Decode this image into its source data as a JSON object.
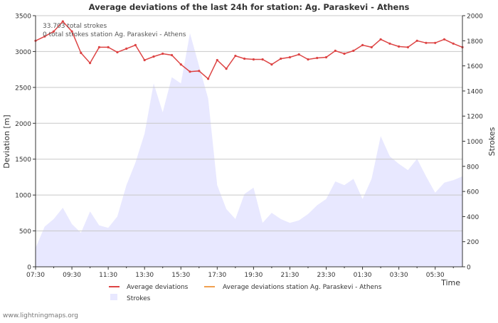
{
  "chart_data": {
    "type": "line",
    "title": "Average deviations of the last 24h for station: Ag. Paraskevi - Athens",
    "xlabel": "Time",
    "ylabel_left": "Deviation  [m]",
    "ylabel_right": "Strokes",
    "ylim_left": [
      0,
      3500
    ],
    "ylim_right": [
      0,
      2000
    ],
    "yticks_left": [
      "0",
      "500",
      "1000",
      "1500",
      "2000",
      "2500",
      "3000",
      "3500"
    ],
    "yticks_right": [
      "0",
      "200",
      "400",
      "600",
      "800",
      "1000",
      "1200",
      "1400",
      "1600",
      "1800",
      "2000"
    ],
    "x_range_hours": [
      0,
      23.5
    ],
    "xticks": [
      {
        "h": 0,
        "label": "07:30"
      },
      {
        "h": 2,
        "label": "09:30"
      },
      {
        "h": 4,
        "label": "11:30"
      },
      {
        "h": 6,
        "label": "13:30"
      },
      {
        "h": 8,
        "label": "15:30"
      },
      {
        "h": 10,
        "label": "17:30"
      },
      {
        "h": 12,
        "label": "19:30"
      },
      {
        "h": 14,
        "label": "21:30"
      },
      {
        "h": 16,
        "label": "23:30"
      },
      {
        "h": 18,
        "label": "01:30"
      },
      {
        "h": 20,
        "label": "03:30"
      },
      {
        "h": 22,
        "label": "05:30"
      }
    ],
    "annotations": [
      "33.703 total strokes",
      "0 total strokes station Ag. Paraskevi - Athens"
    ],
    "series": [
      {
        "name": "Average deviations",
        "axis": "left",
        "color": "#dd4444",
        "x": [
          0,
          0.5,
          1,
          1.5,
          2,
          2.5,
          3,
          3.5,
          4,
          4.5,
          5,
          5.5,
          6,
          6.5,
          7,
          7.5,
          8,
          8.5,
          9,
          9.5,
          10,
          10.5,
          11,
          11.5,
          12,
          12.5,
          13,
          13.5,
          14,
          14.5,
          15,
          15.5,
          16,
          16.5,
          17,
          17.5,
          18,
          18.5,
          19,
          19.5,
          20,
          20.5,
          21,
          21.5,
          22,
          22.5,
          23,
          23.5
        ],
        "values": [
          3150,
          3210,
          3280,
          3420,
          3280,
          2980,
          2840,
          3060,
          3060,
          2990,
          3040,
          3090,
          2880,
          2930,
          2970,
          2950,
          2820,
          2720,
          2730,
          2620,
          2880,
          2760,
          2940,
          2900,
          2890,
          2890,
          2820,
          2900,
          2920,
          2960,
          2890,
          2910,
          2920,
          3010,
          2970,
          3010,
          3090,
          3060,
          3170,
          3110,
          3070,
          3060,
          3150,
          3120,
          3120,
          3170,
          3110,
          3060
        ]
      },
      {
        "name": "Average deviations station Ag. Paraskevi - Athens",
        "axis": "left",
        "color": "#f0a050",
        "x": [],
        "values": []
      },
      {
        "name": "Strokes",
        "axis": "right",
        "color": "#e8e8ff",
        "x": [
          0,
          0.5,
          1,
          1.5,
          2,
          2.5,
          3,
          3.5,
          4,
          4.5,
          5,
          5.5,
          6,
          6.5,
          7,
          7.5,
          8,
          8.5,
          9,
          9.5,
          10,
          10.5,
          11,
          11.5,
          12,
          12.5,
          13,
          13.5,
          14,
          14.5,
          15,
          15.5,
          16,
          16.5,
          17,
          17.5,
          18,
          18.5,
          19,
          19.5,
          20,
          20.5,
          21,
          21.5,
          22,
          22.5,
          23,
          23.5
        ],
        "values": [
          150,
          320,
          380,
          470,
          340,
          270,
          440,
          330,
          310,
          400,
          650,
          830,
          1060,
          1460,
          1230,
          1510,
          1460,
          1860,
          1600,
          1340,
          650,
          460,
          380,
          580,
          630,
          350,
          430,
          380,
          350,
          370,
          420,
          490,
          540,
          680,
          650,
          700,
          540,
          700,
          1040,
          880,
          820,
          770,
          860,
          720,
          590,
          670,
          690,
          720
        ]
      }
    ]
  },
  "footer": {
    "credit": "www.lightningmaps.org"
  }
}
